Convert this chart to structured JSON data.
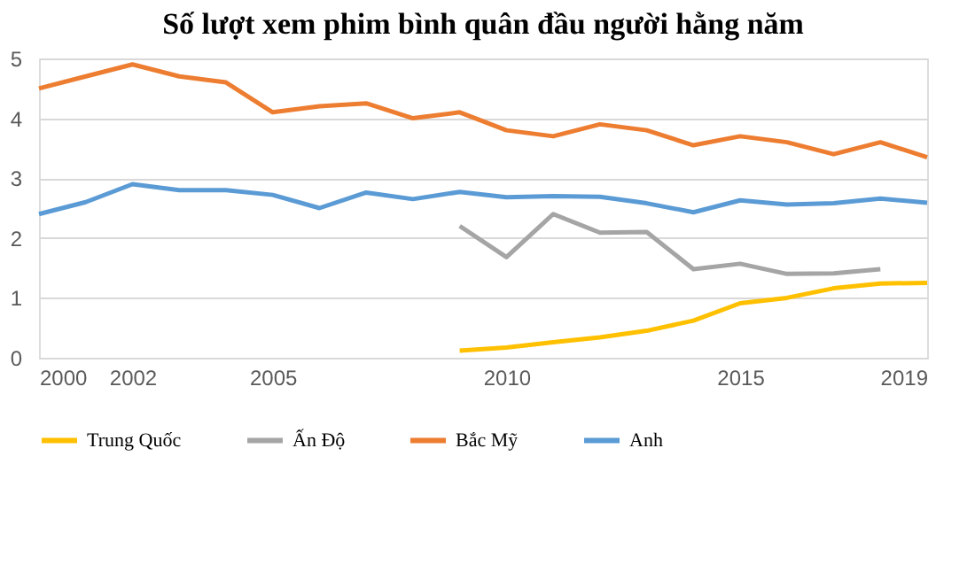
{
  "chart_data": {
    "type": "line",
    "title": "Số lượt xem phim bình quân đầu người hằng năm",
    "x": [
      2000,
      2001,
      2002,
      2003,
      2004,
      2005,
      2006,
      2007,
      2008,
      2009,
      2010,
      2011,
      2012,
      2013,
      2014,
      2015,
      2016,
      2017,
      2018,
      2019
    ],
    "series": [
      {
        "name": "Trung Quốc",
        "color": "#ffc000",
        "values": [
          null,
          null,
          null,
          null,
          null,
          null,
          null,
          null,
          null,
          0.12,
          0.17,
          0.26,
          0.34,
          0.45,
          0.62,
          0.91,
          1.0,
          1.16,
          1.24,
          1.25
        ]
      },
      {
        "name": "Ấn Độ",
        "color": "#a5a5a5",
        "values": [
          null,
          null,
          null,
          null,
          null,
          null,
          null,
          null,
          null,
          2.2,
          1.68,
          2.4,
          2.09,
          2.1,
          1.48,
          1.57,
          1.4,
          1.41,
          1.48,
          null
        ]
      },
      {
        "name": "Bắc Mỹ",
        "color": "#ed7d31",
        "values": [
          4.5,
          4.7,
          4.9,
          4.7,
          4.6,
          4.1,
          4.2,
          4.25,
          4.0,
          4.1,
          3.8,
          3.7,
          3.9,
          3.8,
          3.55,
          3.7,
          3.6,
          3.4,
          3.6,
          3.35
        ]
      },
      {
        "name": "Anh",
        "color": "#5b9bd5",
        "values": [
          2.4,
          2.6,
          2.9,
          2.8,
          2.8,
          2.72,
          2.5,
          2.76,
          2.65,
          2.77,
          2.68,
          2.7,
          2.69,
          2.58,
          2.43,
          2.63,
          2.56,
          2.58,
          2.66,
          2.59
        ]
      }
    ],
    "xlim": [
      2000,
      2019
    ],
    "xticks": [
      2000,
      2002,
      2005,
      2010,
      2015,
      2019
    ],
    "ylim": [
      0,
      5
    ],
    "yticks": [
      0,
      1,
      2,
      3,
      4,
      5
    ],
    "grid": "y",
    "legend": "bottom",
    "marker": "none",
    "line_style": "solid"
  }
}
